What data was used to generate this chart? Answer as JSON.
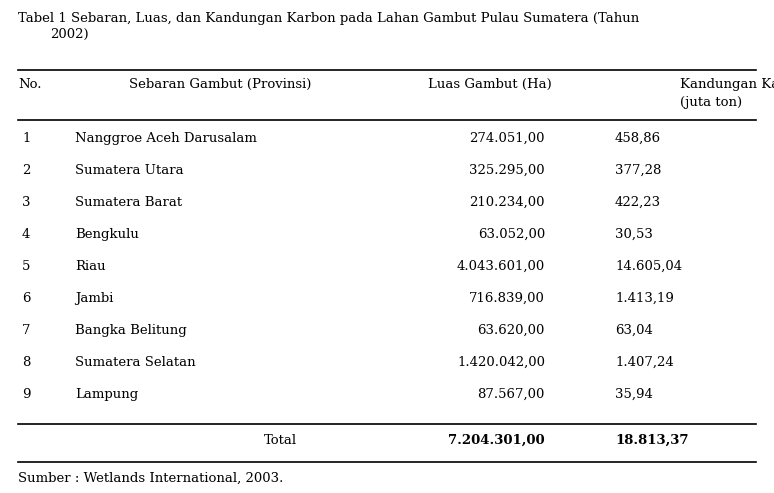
{
  "title_line1": "Tabel 1 Sebaran, Luas, dan Kandungan Karbon pada Lahan Gambut Pulau Sumatera (Tahun",
  "title_line2": "2002)",
  "col_headers_1": [
    "No.",
    "Sebaran Gambut (Provinsi)",
    "Luas Gambut (Ha)",
    "Kandungan Karbon"
  ],
  "col_headers_2": "(juta ton)",
  "rows": [
    [
      "1",
      "Nanggroe Aceh Darusalam",
      "274.051,00",
      "458,86"
    ],
    [
      "2",
      "Sumatera Utara",
      "325.295,00",
      "377,28"
    ],
    [
      "3",
      "Sumatera Barat",
      "210.234,00",
      "422,23"
    ],
    [
      "4",
      "Bengkulu",
      "63.052,00",
      "30,53"
    ],
    [
      "5",
      "Riau",
      "4.043.601,00",
      "14.605,04"
    ],
    [
      "6",
      "Jambi",
      "716.839,00",
      "1.413,19"
    ],
    [
      "7",
      "Bangka Belitung",
      "63.620,00",
      "63,04"
    ],
    [
      "8",
      "Sumatera Selatan",
      "1.420.042,00",
      "1.407,24"
    ],
    [
      "9",
      "Lampung",
      "87.567,00",
      "35,94"
    ]
  ],
  "total_row": [
    "",
    "Total",
    "7.204.301,00",
    "18.813,37"
  ],
  "footer": "Sumber : Wetlands International, 2003.",
  "bg_color": "#ffffff",
  "text_color": "#000000",
  "font_size": 9.5,
  "title_font_size": 9.5
}
